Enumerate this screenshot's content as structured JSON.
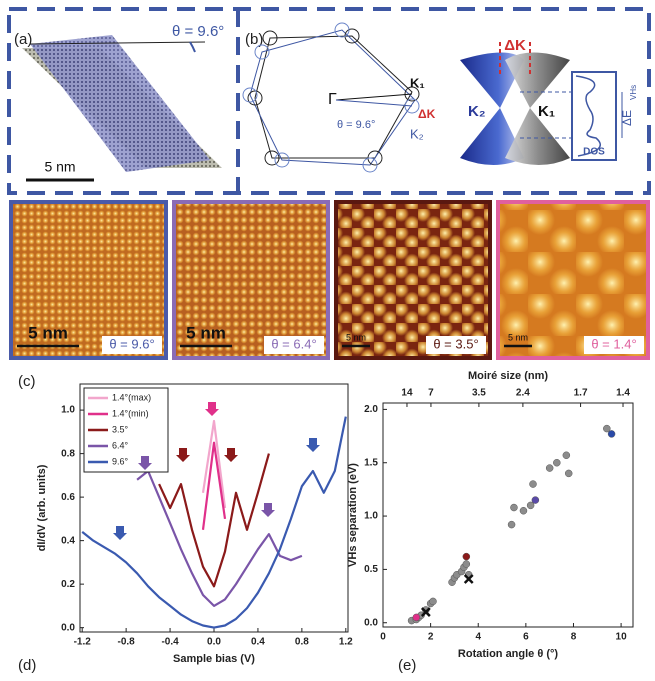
{
  "panel_a": {
    "label": "(a)",
    "angle": "θ = 9.6°",
    "scale": "5 nm"
  },
  "panel_b": {
    "label": "(b)",
    "gamma": "Γ",
    "angle": "θ = 9.6°",
    "delta_k_small": "ΔK",
    "k1_hex": "K₁",
    "k2_hex": "K₂",
    "delta_k": "ΔK",
    "k2_cone": "K₂",
    "k1_cone": "K₁",
    "delta_e": "ΔE",
    "delta_e_sub": "VHs",
    "dos": "DOS"
  },
  "stm_images": [
    {
      "scale": "5 nm",
      "angle": "θ = 9.6°",
      "color": "#4a5aa8"
    },
    {
      "scale": "5 nm",
      "angle": "θ = 6.4°",
      "color": "#8a6bb5"
    },
    {
      "scale": "5 nm",
      "angle": "θ = 3.5°",
      "color": "#5a1810"
    },
    {
      "scale": "5 nm",
      "angle": "θ = 1.4°",
      "color": "#e0609e"
    }
  ],
  "panel_labels": {
    "c": "(c)",
    "d": "(d)",
    "e": "(e)"
  },
  "chart_data": [
    {
      "type": "line",
      "x_label": "Sample bias (V)",
      "y_label": "dI/dV (arb. units)",
      "xlim": [
        -1.22,
        1.22
      ],
      "ylim": [
        -0.02,
        1.12
      ],
      "xticks": [
        -1.2,
        -0.8,
        -0.4,
        {
          "value": 0,
          "label": "0.0"
        },
        0.4,
        0.8,
        1.2
      ],
      "yticks": [
        {
          "value": 0,
          "label": "0.0"
        },
        0.2,
        0.4,
        0.6,
        0.8,
        {
          "value": 1,
          "label": "1.0"
        }
      ],
      "legend": "upper left",
      "grid": false,
      "x": [
        -1.2,
        -1.1,
        -1.0,
        -0.9,
        -0.8,
        -0.7,
        -0.6,
        -0.5,
        -0.4,
        -0.3,
        -0.2,
        -0.1,
        0,
        0.1,
        0.2,
        0.3,
        0.4,
        0.5,
        0.6,
        0.7,
        0.8,
        0.9,
        1.0,
        1.1,
        1.2
      ],
      "series": [
        {
          "name": "1.4°(max)",
          "color": "#f2a6cc",
          "values": [
            null,
            null,
            null,
            null,
            null,
            null,
            null,
            null,
            null,
            null,
            null,
            0.62,
            0.95,
            0.55,
            null,
            null,
            null,
            null,
            null,
            null,
            null,
            null,
            null,
            null,
            null
          ]
        },
        {
          "name": "1.4°(min)",
          "color": "#e0308a",
          "values": [
            null,
            null,
            null,
            null,
            null,
            null,
            null,
            null,
            null,
            null,
            null,
            0.45,
            0.85,
            0.5,
            null,
            null,
            null,
            null,
            null,
            null,
            null,
            null,
            null,
            null,
            null
          ]
        },
        {
          "name": "3.5°",
          "color": "#8b1a1a",
          "values": [
            null,
            null,
            null,
            null,
            null,
            null,
            null,
            0.66,
            0.55,
            0.66,
            0.45,
            0.28,
            0.19,
            0.35,
            0.62,
            0.45,
            0.62,
            0.8,
            null,
            null,
            null,
            null,
            null,
            null,
            null
          ]
        },
        {
          "name": "6.4°",
          "color": "#7a55a8",
          "values": [
            null,
            null,
            null,
            null,
            null,
            0.68,
            0.72,
            0.6,
            0.48,
            0.36,
            0.25,
            0.15,
            0.1,
            0.13,
            0.2,
            0.28,
            0.36,
            0.43,
            0.33,
            0.31,
            0.33,
            null,
            null,
            null,
            null
          ]
        },
        {
          "name": "9.6°",
          "color": "#3a5ab0",
          "values": [
            0.44,
            0.4,
            0.37,
            0.34,
            0.3,
            0.25,
            0.19,
            0.14,
            0.1,
            0.06,
            0.03,
            0.01,
            0,
            0.01,
            0.04,
            0.09,
            0.16,
            0.25,
            0.36,
            0.5,
            0.65,
            0.72,
            0.62,
            0.72,
            0.97
          ]
        }
      ]
    },
    {
      "type": "scatter",
      "x_label": "Rotation angle θ (°)",
      "y_label": "VHs separation (eV)",
      "x2_label": "Moiré size (nm)",
      "xlim": [
        0,
        10.5
      ],
      "ylim": [
        -0.04,
        2.06
      ],
      "xticks": [
        0,
        2,
        4,
        6,
        8,
        10
      ],
      "yticks": [
        {
          "value": 0,
          "label": "0.0"
        },
        0.5,
        {
          "value": 1,
          "label": "1.0"
        },
        1.5,
        {
          "value": 2,
          "label": "2.0"
        }
      ],
      "x2ticks": [
        14,
        7,
        3.5,
        2.4,
        1.7,
        1.4
      ],
      "grid": false,
      "series": [
        {
          "color": "#8c8c8c",
          "marker": "circle",
          "x": [
            1.2,
            1.4,
            1.5,
            1.6,
            1.8,
            2.0,
            2.1,
            2.9,
            3.0,
            3.1,
            3.3,
            3.4,
            3.5,
            3.6,
            5.4,
            5.5,
            5.9,
            6.2,
            6.3,
            7.0,
            7.3,
            7.7,
            7.8,
            9.4
          ],
          "values": [
            0.02,
            0.03,
            0.05,
            0.07,
            0.12,
            0.18,
            0.2,
            0.38,
            0.42,
            0.45,
            0.48,
            0.52,
            0.55,
            0.45,
            0.92,
            1.08,
            1.05,
            1.1,
            1.3,
            1.45,
            1.5,
            1.57,
            1.4,
            1.82
          ]
        },
        {
          "color": "#e0308a",
          "marker": "circle",
          "x": [
            1.4
          ],
          "values": [
            0.05
          ]
        },
        {
          "color": "#8b1a1a",
          "marker": "circle",
          "x": [
            3.5
          ],
          "values": [
            0.62
          ]
        },
        {
          "color": "#5a4aa8",
          "marker": "circle",
          "x": [
            6.4
          ],
          "values": [
            1.15
          ]
        },
        {
          "color": "#2a4aa8",
          "marker": "circle",
          "x": [
            9.6
          ],
          "values": [
            1.77
          ]
        },
        {
          "color": "#111111",
          "marker": "x",
          "x": [
            1.8,
            3.6
          ],
          "values": [
            0.1,
            0.41
          ]
        }
      ]
    }
  ]
}
